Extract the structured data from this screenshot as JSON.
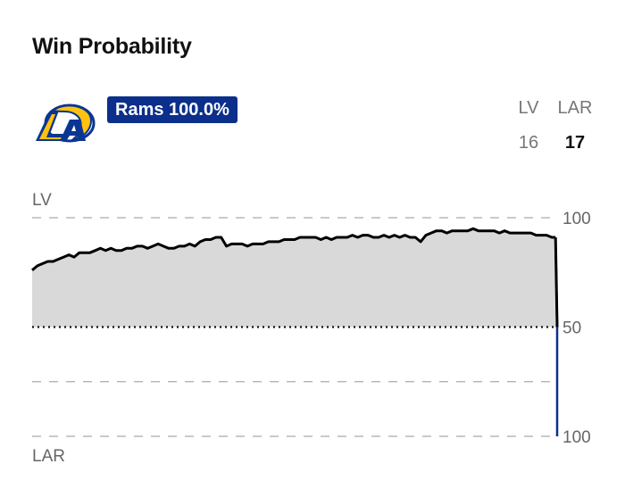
{
  "header": {
    "title": "Win Probability"
  },
  "badge": {
    "label": "Rams 100.0%",
    "color": "#0b2f8a"
  },
  "team_logo": {
    "icon": "rams-horn-logo-icon",
    "colors": {
      "blue": "#0a3592",
      "gold": "#ffc20e"
    }
  },
  "scoreboard": {
    "teams": [
      {
        "abbr": "LV",
        "score": "16",
        "winner": false
      },
      {
        "abbr": "LAR",
        "score": "17",
        "winner": true
      }
    ]
  },
  "chart_data": {
    "type": "area",
    "top_team_label": "LV",
    "bottom_team_label": "LAR",
    "y_tick_labels": [
      "100",
      "50",
      "100"
    ],
    "ylim": [
      0,
      100
    ],
    "x_range": [
      0,
      100
    ],
    "baseline": 50,
    "grid": "dashed horizontal lines",
    "colors": {
      "line": "#000000",
      "fill": "#d9d9d9",
      "final_line": "#0b2f8a",
      "grid": "#aaaaaa"
    },
    "series": [
      {
        "x": [
          0,
          1,
          2,
          3,
          4,
          5,
          6,
          7,
          8,
          9,
          10,
          11,
          12,
          13,
          14,
          15,
          16,
          17,
          18,
          19,
          20,
          21,
          22,
          23,
          24,
          25,
          26,
          27,
          28,
          29,
          30,
          31,
          32,
          33,
          34,
          35,
          36,
          37,
          38,
          39,
          40,
          41,
          42,
          43,
          44,
          45,
          46,
          47,
          48,
          49,
          50,
          51,
          52,
          53,
          54,
          55,
          56,
          57,
          58,
          59,
          60,
          61,
          62,
          63,
          64,
          65,
          66,
          67,
          68,
          69,
          70,
          71,
          72,
          73,
          74,
          75,
          76,
          77,
          78,
          79,
          80,
          81,
          82,
          83,
          84,
          85,
          86,
          87,
          88,
          89,
          90,
          91,
          92,
          93,
          94,
          95,
          96,
          97,
          98,
          99,
          99.7,
          100
        ],
        "values": [
          76,
          78,
          79,
          80,
          80,
          81,
          82,
          83,
          82,
          84,
          84,
          84,
          85,
          86,
          85,
          86,
          85,
          85,
          86,
          86,
          87,
          87,
          86,
          87,
          88,
          87,
          86,
          86,
          87,
          87,
          88,
          87,
          89,
          90,
          90,
          91,
          91,
          87,
          88,
          88,
          88,
          87,
          88,
          88,
          88,
          89,
          89,
          89,
          90,
          90,
          90,
          91,
          91,
          91,
          91,
          90,
          91,
          90,
          91,
          91,
          91,
          92,
          91,
          92,
          92,
          91,
          91,
          92,
          91,
          92,
          91,
          92,
          91,
          91,
          89,
          92,
          93,
          94,
          94,
          93,
          94,
          94,
          94,
          94,
          95,
          94,
          94,
          94,
          94,
          93,
          94,
          93,
          93,
          93,
          93,
          93,
          92,
          92,
          92,
          91,
          91,
          0
        ]
      }
    ]
  }
}
